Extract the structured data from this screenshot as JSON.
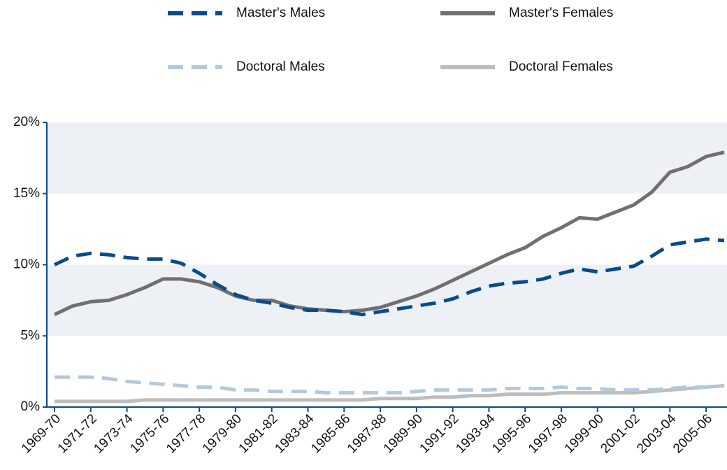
{
  "chart_data": {
    "type": "line",
    "categories": [
      "1969-70",
      null,
      "1971-72",
      null,
      "1973-74",
      null,
      "1975-76",
      null,
      "1977-78",
      null,
      "1979-80",
      null,
      "1981-82",
      null,
      "1983-84",
      null,
      "1985-86",
      null,
      "1987-88",
      null,
      "1989-90",
      null,
      "1991-92",
      null,
      "1993-94",
      null,
      "1995-96",
      null,
      "1997-98",
      null,
      "1999-00",
      null,
      "2001-02",
      null,
      "2003-04",
      null,
      "2005-06",
      null
    ],
    "series": [
      {
        "name": "Master's Males",
        "color": "#0b4a8b",
        "line_style": "dashed",
        "values": [
          10.0,
          10.6,
          10.8,
          10.7,
          10.5,
          10.4,
          10.4,
          10.1,
          9.4,
          8.6,
          7.9,
          7.5,
          7.3,
          7.0,
          6.8,
          6.8,
          6.7,
          6.5,
          6.7,
          6.9,
          7.1,
          7.3,
          7.6,
          8.1,
          8.5,
          8.7,
          8.8,
          9.0,
          9.4,
          9.7,
          9.5,
          9.7,
          9.9,
          10.6,
          11.4,
          11.6,
          11.8,
          11.7
        ]
      },
      {
        "name": "Master's Females",
        "color": "#707070",
        "line_style": "solid",
        "values": [
          6.5,
          7.1,
          7.4,
          7.5,
          7.9,
          8.4,
          9.0,
          9.0,
          8.8,
          8.4,
          7.8,
          7.5,
          7.5,
          7.1,
          6.9,
          6.8,
          6.7,
          6.8,
          7.0,
          7.4,
          7.8,
          8.3,
          8.9,
          9.5,
          10.1,
          10.7,
          11.2,
          12.0,
          12.6,
          13.3,
          13.2,
          13.7,
          14.2,
          15.1,
          16.5,
          16.9,
          17.6,
          17.9
        ]
      },
      {
        "name": "Doctoral Males",
        "color": "#b4c8dc",
        "line_style": "dashed",
        "values": [
          2.1,
          2.1,
          2.1,
          2.0,
          1.8,
          1.7,
          1.6,
          1.5,
          1.4,
          1.4,
          1.2,
          1.2,
          1.1,
          1.1,
          1.1,
          1.0,
          1.0,
          1.0,
          1.0,
          1.0,
          1.1,
          1.2,
          1.2,
          1.2,
          1.2,
          1.3,
          1.3,
          1.3,
          1.4,
          1.3,
          1.3,
          1.2,
          1.2,
          1.2,
          1.3,
          1.4,
          1.4,
          1.5
        ]
      },
      {
        "name": "Doctoral Females",
        "color": "#bdbdbd",
        "line_style": "solid",
        "values": [
          0.4,
          0.4,
          0.4,
          0.4,
          0.4,
          0.5,
          0.5,
          0.5,
          0.5,
          0.5,
          0.5,
          0.5,
          0.5,
          0.5,
          0.5,
          0.5,
          0.5,
          0.5,
          0.6,
          0.6,
          0.6,
          0.7,
          0.7,
          0.8,
          0.8,
          0.9,
          0.9,
          0.9,
          1.0,
          1.0,
          1.0,
          1.0,
          1.0,
          1.1,
          1.2,
          1.3,
          1.4,
          1.5
        ]
      }
    ],
    "ylim": [
      0,
      20
    ],
    "yticks": [
      {
        "value": 0,
        "label": "0%"
      },
      {
        "value": 5,
        "label": "5%"
      },
      {
        "value": 10,
        "label": "10%"
      },
      {
        "value": 15,
        "label": "15%"
      },
      {
        "value": 20,
        "label": "20%"
      }
    ],
    "banded_background": true,
    "band_color": "#edf1f5",
    "legend": "top"
  }
}
